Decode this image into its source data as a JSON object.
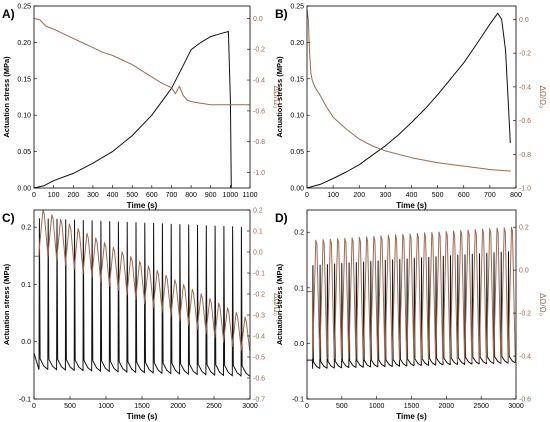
{
  "colors": {
    "stress": "#111111",
    "dr": "#9c6a52"
  },
  "chart_data": [
    {
      "panel": "A)",
      "type": "line",
      "xlabel": "Time (s)",
      "ylabel": "Actuation stress (MPa)",
      "y2label": "ΔΩ/Ω₀",
      "xlim": [
        0,
        1100
      ],
      "ylim": [
        0,
        0.25
      ],
      "y2lim": [
        -1.1,
        0.08
      ],
      "xticks": [
        0,
        100,
        200,
        300,
        400,
        500,
        600,
        700,
        800,
        900,
        1000,
        1100
      ],
      "yticks": [
        0.0,
        0.05,
        0.1,
        0.15,
        0.2,
        0.25
      ],
      "y2ticks": [
        0.0,
        -0.2,
        -0.4,
        -0.6,
        -0.8,
        -1.0
      ],
      "ydec": 2,
      "y2dec": 1,
      "series": [
        {
          "axis": "left",
          "color": "stress",
          "x": [
            0,
            50,
            100,
            200,
            300,
            400,
            500,
            600,
            700,
            750,
            800,
            850,
            900,
            950,
            990,
            1000,
            1005
          ],
          "y": [
            0.0,
            0.003,
            0.01,
            0.02,
            0.034,
            0.05,
            0.072,
            0.1,
            0.137,
            0.163,
            0.19,
            0.2,
            0.208,
            0.212,
            0.215,
            0.12,
            0.0
          ]
        },
        {
          "axis": "right",
          "color": "dr",
          "x": [
            0,
            30,
            60,
            100,
            150,
            200,
            250,
            300,
            350,
            400,
            450,
            500,
            550,
            600,
            650,
            700,
            720,
            740,
            760,
            780,
            800,
            850,
            900,
            950,
            1000,
            1050,
            1100
          ],
          "y": [
            0.0,
            -0.01,
            -0.05,
            -0.07,
            -0.1,
            -0.13,
            -0.16,
            -0.19,
            -0.22,
            -0.24,
            -0.27,
            -0.3,
            -0.34,
            -0.38,
            -0.42,
            -0.45,
            -0.49,
            -0.44,
            -0.5,
            -0.53,
            -0.54,
            -0.55,
            -0.56,
            -0.56,
            -0.56,
            -0.56,
            -0.56
          ]
        }
      ]
    },
    {
      "panel": "B)",
      "type": "line",
      "xlabel": "Time (s)",
      "ylabel": "Actuation stress (MPa)",
      "y2label": "ΔΩ/Ω₀",
      "xlim": [
        0,
        800
      ],
      "ylim": [
        0,
        0.25
      ],
      "y2lim": [
        -1.0,
        0.08
      ],
      "xticks": [
        0,
        100,
        200,
        300,
        400,
        500,
        600,
        700,
        800
      ],
      "yticks": [
        0.0,
        0.05,
        0.1,
        0.15,
        0.2,
        0.25
      ],
      "y2ticks": [
        0.0,
        -0.2,
        -0.4,
        -0.6,
        -0.8,
        -1.0
      ],
      "ydec": 2,
      "y2dec": 1,
      "series": [
        {
          "axis": "left",
          "color": "stress",
          "x": [
            0,
            20,
            50,
            100,
            150,
            200,
            250,
            300,
            350,
            400,
            450,
            500,
            550,
            600,
            650,
            700,
            730,
            745,
            760,
            770,
            778
          ],
          "y": [
            0.0,
            0.002,
            0.005,
            0.013,
            0.022,
            0.032,
            0.045,
            0.058,
            0.073,
            0.09,
            0.108,
            0.128,
            0.15,
            0.172,
            0.198,
            0.225,
            0.24,
            0.232,
            0.19,
            0.12,
            0.062
          ]
        },
        {
          "axis": "right",
          "color": "dr",
          "x": [
            0,
            5,
            10,
            15,
            20,
            30,
            50,
            75,
            100,
            150,
            200,
            250,
            300,
            400,
            500,
            600,
            700,
            780
          ],
          "y": [
            0.06,
            0.0,
            -0.2,
            -0.32,
            -0.36,
            -0.4,
            -0.45,
            -0.52,
            -0.58,
            -0.65,
            -0.71,
            -0.75,
            -0.78,
            -0.82,
            -0.85,
            -0.87,
            -0.89,
            -0.9
          ]
        }
      ]
    },
    {
      "panel": "C)",
      "type": "line",
      "xlabel": "Time (s)",
      "ylabel": "Actuation stress (MPa)",
      "y2label": "ΔΩ/Ω₀",
      "xlim": [
        0,
        3000
      ],
      "ylim": [
        -0.1,
        0.23
      ],
      "y2lim": [
        -0.7,
        0.2
      ],
      "xticks": [
        0,
        500,
        1000,
        1500,
        2000,
        2500,
        3000
      ],
      "yticks": [
        -0.1,
        0.0,
        0.1,
        0.2
      ],
      "y2ticks": [
        0.2,
        0.1,
        0.0,
        -0.1,
        -0.2,
        -0.3,
        -0.4,
        -0.5,
        -0.6,
        -0.7
      ],
      "ydec": 1,
      "y2dec": 1,
      "pulse_series": [
        {
          "axis": "left",
          "color": "stress",
          "t0": 70,
          "period": 122,
          "count": 24,
          "base": [
            -0.048,
            -0.06
          ],
          "peak": [
            0.215,
            0.2
          ],
          "drop": 0.018,
          "pre": [
            -0.02,
            -0.048
          ],
          "pre_len": 40
        },
        {
          "axis": "right",
          "color": "dr",
          "t0": 70,
          "period": 122,
          "count": 24,
          "base": [
            0.0,
            -0.47
          ],
          "peak": [
            0.0,
            -0.38
          ],
          "wave_amp": [
            0.2,
            0.07
          ],
          "pre": [
            -0.02,
            -0.02
          ],
          "pre_len": 70
        }
      ]
    },
    {
      "panel": "D)",
      "type": "line",
      "xlabel": "Time (s)",
      "ylabel": "Actuation stress (MPa)",
      "y2label": "ΔΩ/Ω₀",
      "xlim": [
        0,
        3000
      ],
      "ylim": [
        -0.1,
        0.24
      ],
      "y2lim": [
        -0.6,
        0.28
      ],
      "xticks": [
        0,
        500,
        1000,
        1500,
        2000,
        2500,
        3000
      ],
      "yticks": [
        -0.1,
        0.0,
        0.1,
        0.2
      ],
      "y2ticks": [
        0.2,
        0.0,
        -0.2,
        -0.4,
        -0.6
      ],
      "ydec": 1,
      "y2dec": 1,
      "pulse_series": [
        {
          "axis": "left",
          "color": "stress",
          "t0": 80,
          "period": 104,
          "count": 28,
          "base": [
            -0.045,
            -0.035
          ],
          "peak": [
            0.14,
            0.165
          ],
          "drop": 0.012,
          "pre": [
            -0.03,
            -0.03
          ],
          "pre_len": 60
        },
        {
          "axis": "right",
          "color": "dr",
          "t0": 80,
          "period": 104,
          "count": 28,
          "base": [
            -0.41,
            -0.43
          ],
          "peak": [
            0.14,
            0.2
          ],
          "wave_amp": [
            0.0,
            0.0
          ],
          "pre": [
            -0.1,
            -0.1
          ],
          "pre_len": 80
        }
      ]
    }
  ]
}
